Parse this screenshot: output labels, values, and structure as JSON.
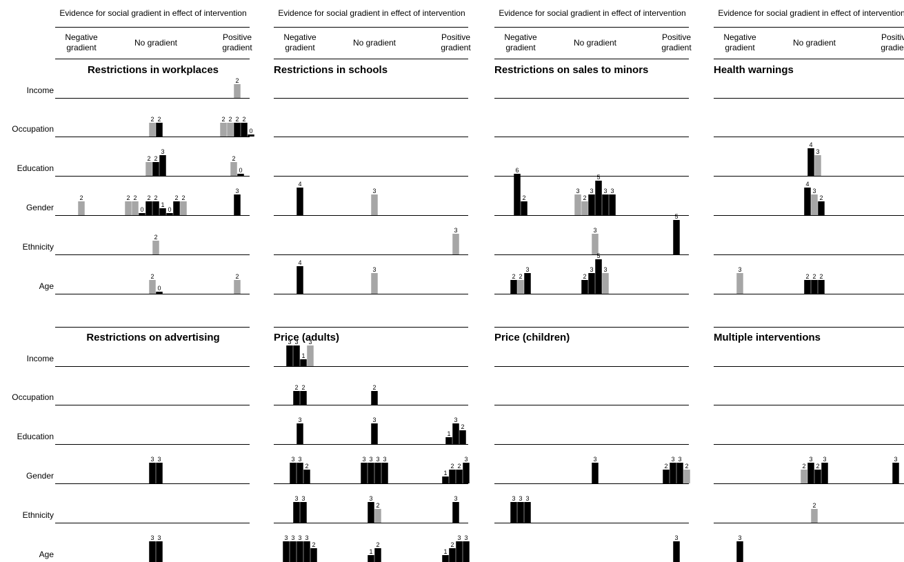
{
  "header_text": "Evidence for social gradient in effect of intervention",
  "column_headers": [
    "Negative gradient",
    "No gradient",
    "Positive gradient"
  ],
  "row_labels": [
    "Income",
    "Occupation",
    "Education",
    "Gender",
    "Ethnicity",
    "Age"
  ],
  "colors": {
    "dark": "#000000",
    "light": "#a6a6a6",
    "rule": "#000000"
  },
  "legend_note": "",
  "chart_data": {
    "type": "bar",
    "description_units": "each bar is one study; bar height is the printed quality score; color dark/light distinguishes study categories",
    "panels": [
      {
        "title": "Restrictions in workplaces",
        "rows": {
          "Income": {
            "neg": [],
            "none": [],
            "pos": [
              [
                "light",
                "2"
              ]
            ]
          },
          "Occupation": {
            "neg": [],
            "none": [
              [
                "light",
                "2"
              ],
              [
                "dark",
                "2"
              ]
            ],
            "pos": [
              [
                "light",
                "2"
              ],
              [
                "light",
                "2"
              ],
              [
                "dark",
                "2"
              ],
              [
                "dark",
                "2"
              ],
              [
                "dark",
                "0"
              ]
            ]
          },
          "Education": {
            "neg": [],
            "none": [
              [
                "light",
                "2"
              ],
              [
                "dark",
                "2"
              ],
              [
                "dark",
                "3"
              ]
            ],
            "pos": [
              [
                "light",
                "2"
              ],
              [
                "dark",
                "0"
              ]
            ]
          },
          "Gender": {
            "neg": [
              [
                "light",
                "2"
              ]
            ],
            "none": [
              [
                "light",
                "2"
              ],
              [
                "light",
                "2"
              ],
              [
                "dark",
                "0"
              ],
              [
                "dark",
                "2"
              ],
              [
                "dark",
                "2"
              ],
              [
                "dark",
                "1"
              ],
              [
                "dark",
                "0"
              ],
              [
                "dark",
                "2"
              ],
              [
                "light",
                "2"
              ]
            ],
            "pos": [
              [
                "dark",
                "3"
              ]
            ]
          },
          "Ethnicity": {
            "neg": [],
            "none": [
              [
                "light",
                "2"
              ]
            ],
            "pos": []
          },
          "Age": {
            "neg": [],
            "none": [
              [
                "light",
                "2"
              ],
              [
                "dark",
                "0"
              ]
            ],
            "pos": [
              [
                "light",
                "2"
              ]
            ]
          }
        }
      },
      {
        "title": "Restrictions in schools",
        "rows": {
          "Income": {
            "neg": [],
            "none": [],
            "pos": []
          },
          "Occupation": {
            "neg": [],
            "none": [],
            "pos": []
          },
          "Education": {
            "neg": [],
            "none": [],
            "pos": []
          },
          "Gender": {
            "neg": [
              [
                "dark",
                "4"
              ]
            ],
            "none": [
              [
                "light",
                "3"
              ]
            ],
            "pos": []
          },
          "Ethnicity": {
            "neg": [],
            "none": [],
            "pos": [
              [
                "light",
                "3"
              ]
            ]
          },
          "Age": {
            "neg": [
              [
                "dark",
                "4"
              ]
            ],
            "none": [
              [
                "light",
                "3"
              ]
            ],
            "pos": []
          }
        }
      },
      {
        "title": "Restrictions on sales to minors",
        "rows": {
          "Income": {
            "neg": [],
            "none": [],
            "pos": []
          },
          "Occupation": {
            "neg": [],
            "none": [],
            "pos": []
          },
          "Education": {
            "neg": [],
            "none": [],
            "pos": []
          },
          "Gender": {
            "neg": [
              [
                "dark",
                "6"
              ],
              [
                "dark",
                "2"
              ]
            ],
            "none": [
              [
                "light",
                "3"
              ],
              [
                "light",
                "2"
              ],
              [
                "dark",
                "3"
              ],
              [
                "dark",
                "5"
              ],
              [
                "dark",
                "3"
              ],
              [
                "dark",
                "3"
              ]
            ],
            "pos": []
          },
          "Ethnicity": {
            "neg": [],
            "none": [
              [
                "light",
                "3"
              ]
            ],
            "pos": [
              [
                "dark",
                "5"
              ]
            ]
          },
          "Age": {
            "neg": [
              [
                "dark",
                "2"
              ],
              [
                "light",
                "2"
              ],
              [
                "dark",
                "3"
              ]
            ],
            "none": [
              [
                "dark",
                "2"
              ],
              [
                "dark",
                "3"
              ],
              [
                "dark",
                "5"
              ],
              [
                "light",
                "3"
              ]
            ],
            "pos": []
          }
        }
      },
      {
        "title": "Health warnings",
        "rows": {
          "Income": {
            "neg": [],
            "none": [],
            "pos": []
          },
          "Occupation": {
            "neg": [],
            "none": [],
            "pos": []
          },
          "Education": {
            "neg": [],
            "none": [
              [
                "dark",
                "4"
              ],
              [
                "light",
                "3"
              ]
            ],
            "pos": []
          },
          "Gender": {
            "neg": [],
            "none": [
              [
                "dark",
                "4"
              ],
              [
                "light",
                "3"
              ],
              [
                "dark",
                "2"
              ]
            ],
            "pos": []
          },
          "Ethnicity": {
            "neg": [],
            "none": [],
            "pos": []
          },
          "Age": {
            "neg": [
              [
                "light",
                "3"
              ]
            ],
            "none": [
              [
                "dark",
                "2"
              ],
              [
                "dark",
                "2"
              ],
              [
                "dark",
                "2"
              ]
            ],
            "pos": []
          }
        }
      },
      {
        "title": "Restrictions on advertising",
        "rows": {
          "Income": {
            "neg": [],
            "none": [],
            "pos": []
          },
          "Occupation": {
            "neg": [],
            "none": [],
            "pos": []
          },
          "Education": {
            "neg": [],
            "none": [],
            "pos": []
          },
          "Gender": {
            "neg": [],
            "none": [
              [
                "dark",
                "3"
              ],
              [
                "dark",
                "3"
              ]
            ],
            "pos": []
          },
          "Ethnicity": {
            "neg": [],
            "none": [],
            "pos": []
          },
          "Age": {
            "neg": [],
            "none": [
              [
                "dark",
                "3"
              ],
              [
                "dark",
                "3"
              ]
            ],
            "pos": []
          }
        }
      },
      {
        "title": "Price (adults)",
        "rows": {
          "Income": {
            "neg": [
              [
                "dark",
                "3"
              ],
              [
                "dark",
                "3"
              ],
              [
                "dark",
                "1"
              ],
              [
                "light",
                "3"
              ]
            ],
            "none": [],
            "pos": []
          },
          "Occupation": {
            "neg": [
              [
                "dark",
                "2"
              ],
              [
                "dark",
                "2"
              ]
            ],
            "none": [
              [
                "dark",
                "2"
              ]
            ],
            "pos": []
          },
          "Education": {
            "neg": [
              [
                "dark",
                "3"
              ]
            ],
            "none": [
              [
                "dark",
                "3"
              ]
            ],
            "pos": [
              [
                "dark",
                "1"
              ],
              [
                "dark",
                "3"
              ],
              [
                "dark",
                "2"
              ]
            ]
          },
          "Gender": {
            "neg": [
              [
                "dark",
                "3"
              ],
              [
                "dark",
                "3"
              ],
              [
                "dark",
                "2"
              ]
            ],
            "none": [
              [
                "dark",
                "3"
              ],
              [
                "dark",
                "3"
              ],
              [
                "dark",
                "3"
              ],
              [
                "dark",
                "3"
              ]
            ],
            "pos": [
              [
                "dark",
                "1"
              ],
              [
                "dark",
                "2"
              ],
              [
                "dark",
                "2"
              ],
              [
                "dark",
                "3"
              ]
            ]
          },
          "Ethnicity": {
            "neg": [
              [
                "dark",
                "3"
              ],
              [
                "dark",
                "3"
              ]
            ],
            "none": [
              [
                "dark",
                "3"
              ],
              [
                "light",
                "2"
              ]
            ],
            "pos": [
              [
                "dark",
                "3"
              ]
            ]
          },
          "Age": {
            "neg": [
              [
                "dark",
                "3"
              ],
              [
                "dark",
                "3"
              ],
              [
                "dark",
                "3"
              ],
              [
                "dark",
                "3"
              ],
              [
                "dark",
                "2"
              ]
            ],
            "none": [
              [
                "dark",
                "1"
              ],
              [
                "dark",
                "2"
              ]
            ],
            "pos": [
              [
                "dark",
                "1"
              ],
              [
                "dark",
                "2"
              ],
              [
                "dark",
                "3"
              ],
              [
                "dark",
                "3"
              ]
            ]
          }
        }
      },
      {
        "title": "Price (children)",
        "rows": {
          "Income": {
            "neg": [],
            "none": [],
            "pos": []
          },
          "Occupation": {
            "neg": [],
            "none": [],
            "pos": []
          },
          "Education": {
            "neg": [],
            "none": [],
            "pos": []
          },
          "Gender": {
            "neg": [],
            "none": [
              [
                "dark",
                "3"
              ]
            ],
            "pos": [
              [
                "dark",
                "2"
              ],
              [
                "dark",
                "3"
              ],
              [
                "dark",
                "3"
              ],
              [
                "light",
                "2"
              ]
            ]
          },
          "Ethnicity": {
            "neg": [
              [
                "dark",
                "3"
              ],
              [
                "dark",
                "3"
              ],
              [
                "dark",
                "3"
              ]
            ],
            "none": [],
            "pos": []
          },
          "Age": {
            "neg": [],
            "none": [],
            "pos": [
              [
                "dark",
                "3"
              ]
            ]
          }
        }
      },
      {
        "title": "Multiple interventions",
        "rows": {
          "Income": {
            "neg": [],
            "none": [],
            "pos": []
          },
          "Occupation": {
            "neg": [],
            "none": [],
            "pos": []
          },
          "Education": {
            "neg": [],
            "none": [],
            "pos": []
          },
          "Gender": {
            "neg": [],
            "none": [
              [
                "light",
                "2"
              ],
              [
                "dark",
                "3"
              ],
              [
                "dark",
                "2"
              ],
              [
                "dark",
                "3"
              ]
            ],
            "pos": [
              [
                "dark",
                "3"
              ]
            ]
          },
          "Ethnicity": {
            "neg": [],
            "none": [
              [
                "light",
                "2"
              ]
            ],
            "pos": []
          },
          "Age": {
            "neg": [
              [
                "dark",
                "3"
              ]
            ],
            "none": [],
            "pos": []
          }
        }
      }
    ]
  }
}
